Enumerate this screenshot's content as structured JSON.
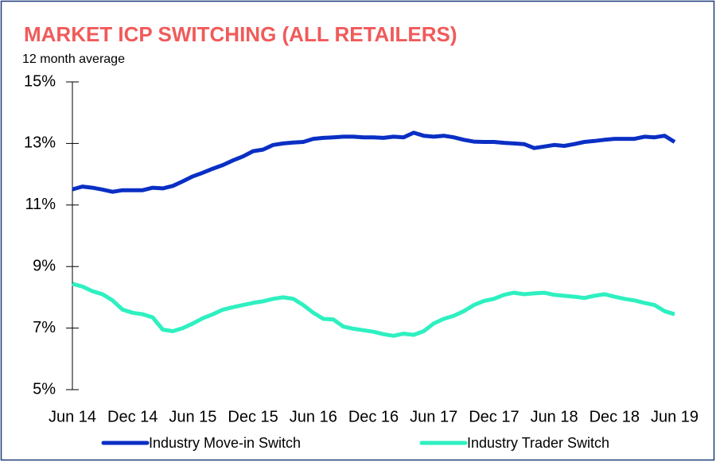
{
  "chart_data": {
    "type": "line",
    "title": "MARKET ICP SWITCHING (ALL RETAILERS)",
    "subtitle": "12 month average",
    "categories": [
      "Jun 14",
      null,
      null,
      null,
      null,
      null,
      "Dec 14",
      null,
      null,
      null,
      null,
      null,
      "Jun 15",
      null,
      null,
      null,
      null,
      null,
      "Dec 15",
      null,
      null,
      null,
      null,
      null,
      "Jun 16",
      null,
      null,
      null,
      null,
      null,
      "Dec 16",
      null,
      null,
      null,
      null,
      null,
      "Jun 17",
      null,
      null,
      null,
      null,
      null,
      "Dec 17",
      null,
      null,
      null,
      null,
      null,
      "Jun 18",
      null,
      null,
      null,
      null,
      null,
      "Dec 18",
      null,
      null,
      null,
      null,
      null,
      "Jun 19"
    ],
    "series": [
      {
        "name": "Industry Move-in Switch",
        "color": "#0a2fc4",
        "values": [
          11.51,
          11.6,
          11.56,
          11.5,
          11.43,
          11.48,
          11.48,
          11.48,
          11.56,
          11.54,
          11.62,
          11.77,
          11.93,
          12.05,
          12.18,
          12.3,
          12.45,
          12.58,
          12.75,
          12.8,
          12.95,
          13.0,
          13.03,
          13.05,
          13.15,
          13.18,
          13.2,
          13.22,
          13.22,
          13.2,
          13.2,
          13.18,
          13.22,
          13.2,
          13.35,
          13.25,
          13.22,
          13.25,
          13.2,
          13.12,
          13.06,
          13.05,
          13.05,
          13.02,
          13.0,
          12.98,
          12.85,
          12.9,
          12.95,
          12.92,
          12.98,
          13.05,
          13.08,
          13.12,
          13.15,
          13.15,
          13.15,
          13.22,
          13.2,
          13.25,
          13.05
        ]
      },
      {
        "name": "Industry Trader Switch",
        "color": "#2ef0c0",
        "values": [
          8.44,
          8.35,
          8.2,
          8.1,
          7.9,
          7.6,
          7.5,
          7.45,
          7.35,
          6.95,
          6.9,
          7.0,
          7.15,
          7.32,
          7.45,
          7.6,
          7.68,
          7.75,
          7.82,
          7.87,
          7.95,
          8.0,
          7.95,
          7.75,
          7.5,
          7.3,
          7.28,
          7.05,
          6.98,
          6.93,
          6.88,
          6.8,
          6.75,
          6.82,
          6.78,
          6.9,
          7.15,
          7.3,
          7.4,
          7.55,
          7.75,
          7.88,
          7.95,
          8.08,
          8.15,
          8.1,
          8.13,
          8.15,
          8.08,
          8.05,
          8.02,
          7.98,
          8.05,
          8.1,
          8.02,
          7.95,
          7.9,
          7.82,
          7.75,
          7.55,
          7.45
        ]
      }
    ],
    "ylim": [
      5,
      15
    ],
    "yticks": [
      {
        "value": 5,
        "label": "5%"
      },
      {
        "value": 7,
        "label": "7%"
      },
      {
        "value": 9,
        "label": "9%"
      },
      {
        "value": 11,
        "label": "11%"
      },
      {
        "value": 13,
        "label": "13%"
      },
      {
        "value": 15,
        "label": "15%"
      }
    ],
    "legend": "bottom"
  }
}
